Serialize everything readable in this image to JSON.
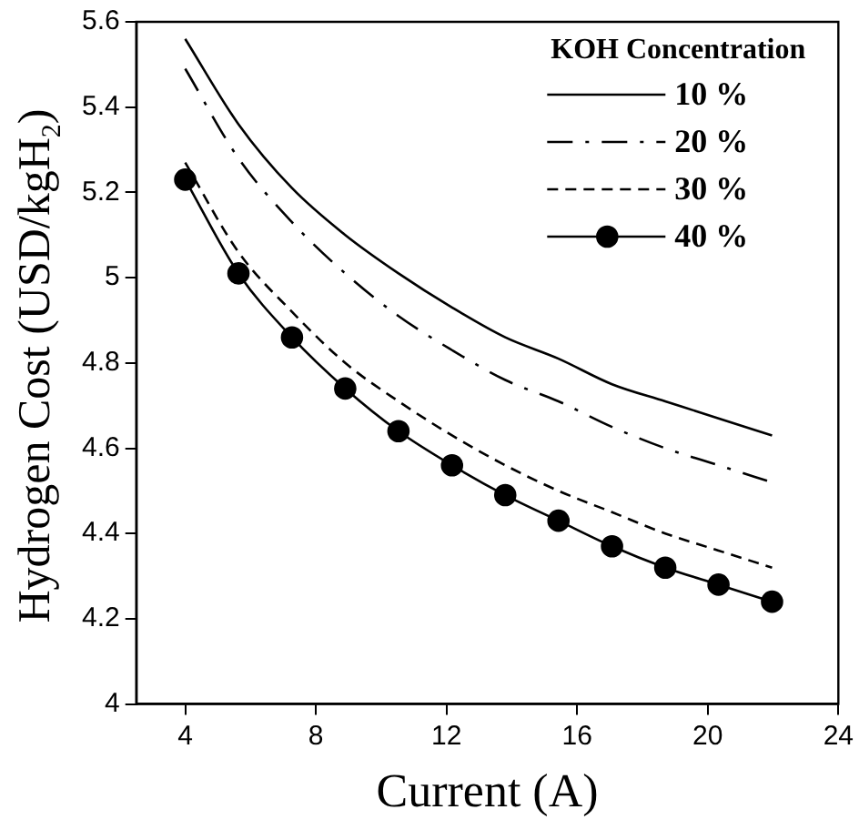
{
  "chart_data": {
    "type": "line",
    "xlabel": "Current (A)",
    "ylabel": "Hydrogen Cost (USD/kgH$_{2}$)",
    "legend_title": "KOH Concentration",
    "legend": "top right",
    "grid": false,
    "x": [
      4,
      5.63,
      7.27,
      8.9,
      10.53,
      12.17,
      13.8,
      15.43,
      17.07,
      18.7,
      20.33,
      21.97
    ],
    "xlim": [
      2.5,
      24
    ],
    "xticks": [
      4,
      8,
      12,
      16,
      20,
      24
    ],
    "ylim": [
      4,
      5.6
    ],
    "yticks": [
      4,
      {
        "value": 4.2,
        "label": "4.2"
      },
      {
        "value": 4.4,
        "label": "4.4"
      },
      {
        "value": 4.6,
        "label": "4.6"
      },
      {
        "value": 4.8,
        "label": "4.8"
      },
      5,
      {
        "value": 5.2,
        "label": "5.2"
      },
      {
        "value": 5.4,
        "label": "5.4"
      },
      {
        "value": 5.6,
        "label": "5.6"
      }
    ],
    "series": [
      {
        "name": "10 %",
        "color": "#000000",
        "line_style": "solid",
        "marker": "none",
        "values": [
          5.56,
          5.36,
          5.21,
          5.1,
          5.01,
          4.93,
          4.86,
          4.81,
          4.75,
          4.71,
          4.67,
          4.63
        ]
      },
      {
        "name": "20 %",
        "color": "#000000",
        "line_style": "dashdot",
        "marker": "none",
        "values": [
          5.49,
          5.28,
          5.13,
          5.01,
          4.91,
          4.83,
          4.76,
          4.71,
          4.65,
          4.6,
          4.56,
          4.52
        ]
      },
      {
        "name": "30 %",
        "color": "#000000",
        "line_style": "dashed",
        "marker": "none",
        "values": [
          5.27,
          5.06,
          4.92,
          4.8,
          4.71,
          4.63,
          4.56,
          4.5,
          4.45,
          4.4,
          4.36,
          4.32
        ]
      },
      {
        "name": "40 %",
        "color": "#000000",
        "line_style": "solid",
        "marker": "circle",
        "values": [
          5.23,
          5.01,
          4.86,
          4.74,
          4.64,
          4.56,
          4.49,
          4.43,
          4.37,
          4.32,
          4.28,
          4.24
        ]
      }
    ]
  }
}
